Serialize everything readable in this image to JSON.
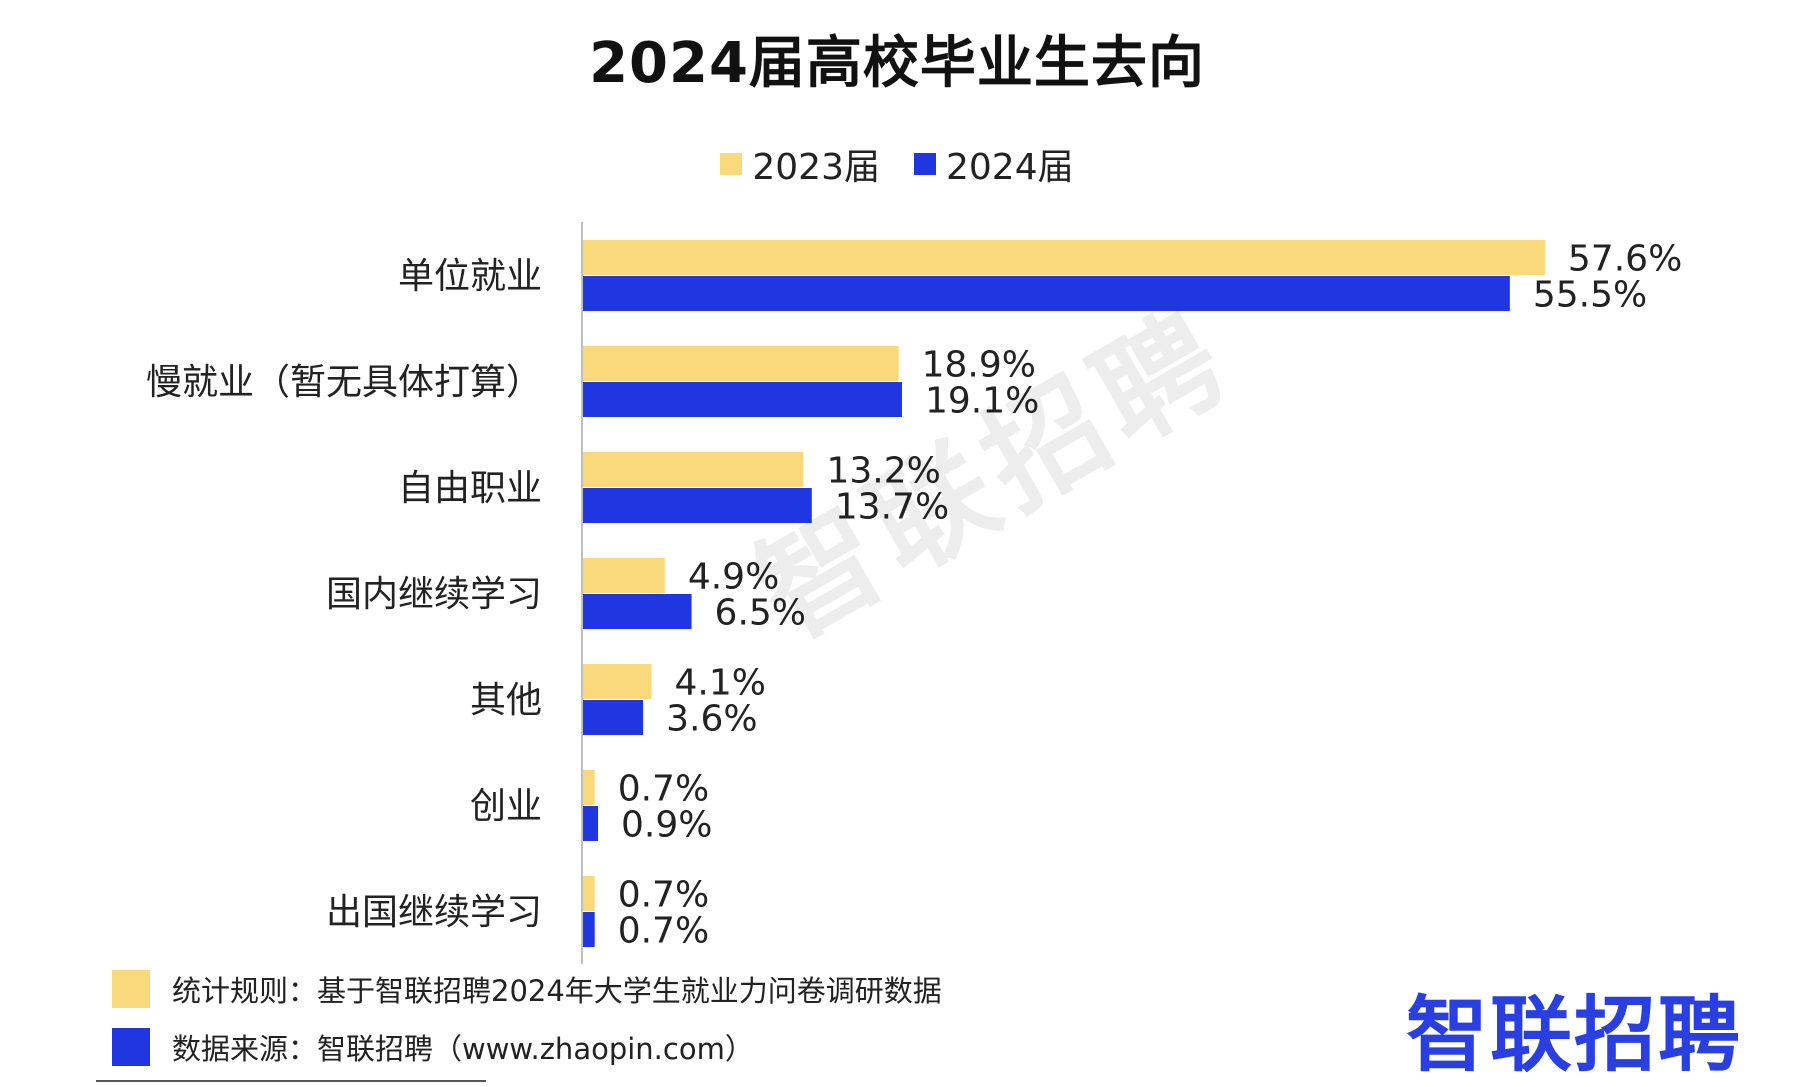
{
  "chart_data": {
    "type": "bar",
    "orientation": "horizontal",
    "title": "2024届高校毕业生去向",
    "categories": [
      "单位就业",
      "慢就业（暂无具体打算）",
      "自由职业",
      "国内继续学习",
      "其他",
      "创业",
      "出国继续学习"
    ],
    "series": [
      {
        "name": "2023届",
        "values": [
          57.6,
          18.9,
          13.2,
          4.9,
          4.1,
          0.7,
          0.7
        ],
        "color": "#f9d97c"
      },
      {
        "name": "2024届",
        "values": [
          55.5,
          19.1,
          13.7,
          6.5,
          3.6,
          0.9,
          0.7
        ],
        "color": "#2036e0"
      }
    ],
    "value_suffix": "%",
    "xlim": [
      0,
      60
    ],
    "grid": false,
    "legend": "top-center"
  },
  "watermark": "智联招聘",
  "footer": {
    "note": "统计规则：基于智联招聘2024年大学生就业力问卷调研数据",
    "source": "数据来源：智联招聘（www.zhaopin.com）"
  },
  "brand": {
    "logo_text": "智联招聘",
    "color": "#2a3fe0"
  }
}
